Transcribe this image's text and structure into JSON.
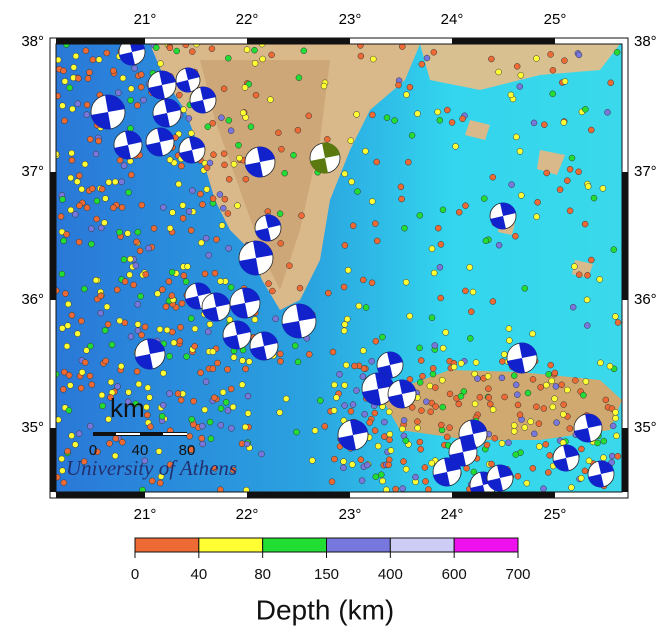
{
  "map": {
    "lon_labels": [
      "21°",
      "22°",
      "23°",
      "24°",
      "25°"
    ],
    "lat_labels": [
      "38°",
      "37°",
      "36°",
      "35°"
    ],
    "scale": {
      "unit": "km",
      "ticks": [
        0,
        40,
        80
      ]
    },
    "credit": "University of Athens"
  },
  "legend": {
    "colors": [
      "#ee6a35",
      "#ffff33",
      "#22dd33",
      "#7777dd",
      "#ccccf5",
      "#ee11ee"
    ],
    "ticks": [
      0,
      40,
      80,
      150,
      400,
      600,
      700
    ],
    "title": "Depth (km)"
  }
}
